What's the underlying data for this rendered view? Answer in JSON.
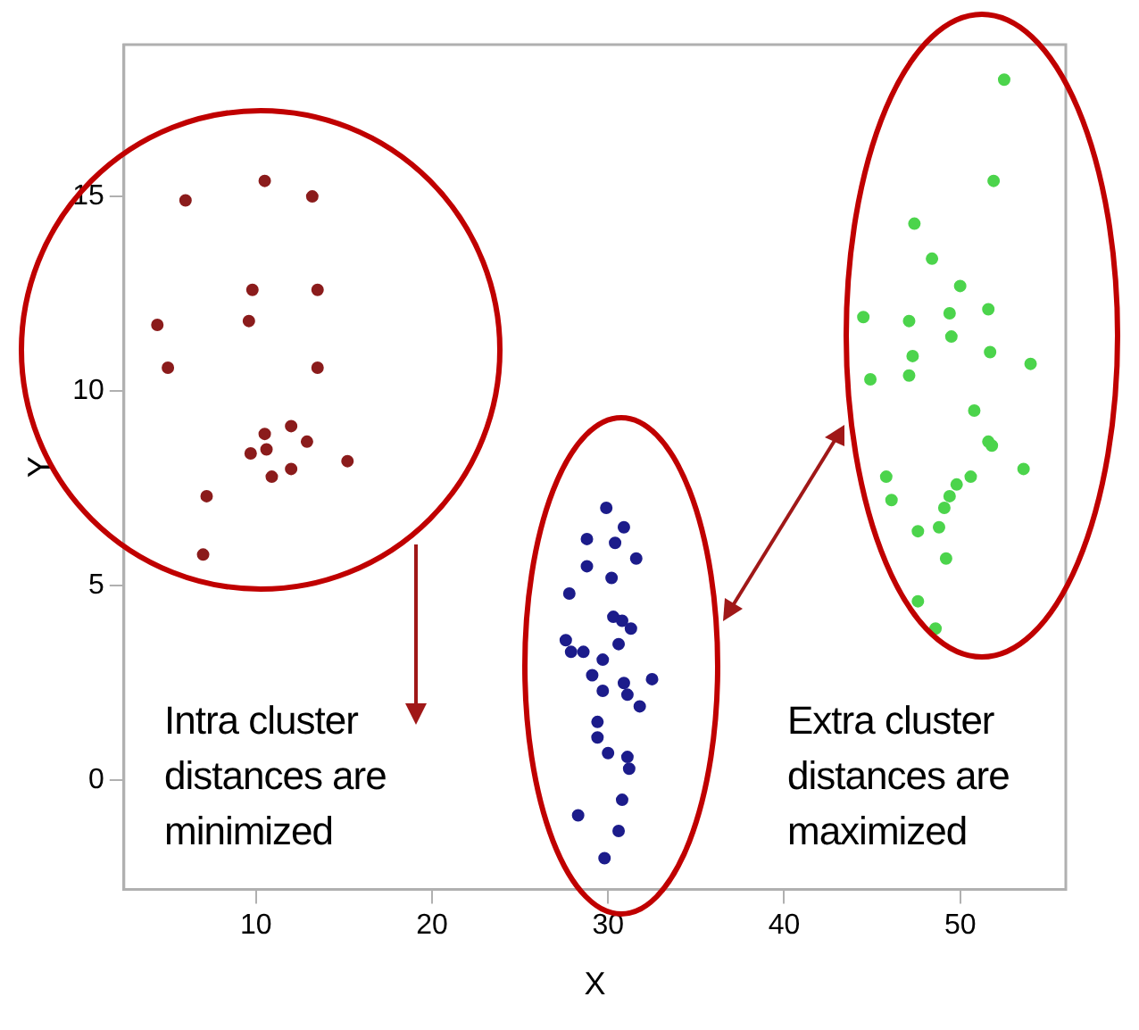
{
  "chart_data": {
    "type": "scatter",
    "xlabel": "X",
    "ylabel": "Y",
    "xlim": [
      2.5,
      56
    ],
    "ylim": [
      -2.8,
      18.9
    ],
    "xticks": [
      10,
      20,
      30,
      40,
      50
    ],
    "yticks": [
      0,
      5,
      10,
      15
    ],
    "grid": false,
    "legend": false,
    "marker": "circle",
    "annotations": [
      "Intra cluster distances are minimized",
      "Extra cluster distances are maximized"
    ],
    "series": [
      {
        "color": "#8b1c1c",
        "x": [
          10.5,
          6.0,
          13.2,
          9.8,
          13.5,
          4.4,
          9.6,
          5.0,
          13.5,
          10.5,
          12.0,
          12.9,
          9.7,
          10.6,
          10.9,
          12.0,
          15.2,
          7.2,
          7.0
        ],
        "values": [
          15.4,
          14.9,
          15.0,
          12.6,
          12.6,
          11.7,
          11.8,
          10.6,
          10.6,
          8.9,
          9.1,
          8.7,
          8.4,
          8.5,
          7.8,
          8.0,
          8.2,
          7.3,
          5.8
        ]
      },
      {
        "color": "#1c1c8b",
        "x": [
          29.9,
          28.8,
          30.4,
          30.9,
          28.8,
          31.6,
          30.2,
          27.8,
          30.3,
          30.8,
          31.3,
          27.6,
          30.6,
          27.9,
          28.6,
          29.7,
          29.1,
          30.9,
          32.5,
          29.7,
          31.1,
          31.8,
          29.4,
          29.4,
          30.0,
          31.1,
          31.2,
          30.8,
          28.3,
          30.6,
          29.8
        ],
        "values": [
          7.0,
          6.2,
          6.1,
          6.5,
          5.5,
          5.7,
          5.2,
          4.8,
          4.2,
          4.1,
          3.9,
          3.6,
          3.5,
          3.3,
          3.3,
          3.1,
          2.7,
          2.5,
          2.6,
          2.3,
          2.2,
          1.9,
          1.5,
          1.1,
          0.7,
          0.6,
          0.3,
          -0.5,
          -0.9,
          -1.3,
          -2.0
        ]
      },
      {
        "color": "#4cd44c",
        "x": [
          52.5,
          51.9,
          47.4,
          48.4,
          50.0,
          51.6,
          44.5,
          47.1,
          49.4,
          49.5,
          51.7,
          47.3,
          54.0,
          44.9,
          47.1,
          50.8,
          51.6,
          51.8,
          53.6,
          45.8,
          50.6,
          49.8,
          46.1,
          49.4,
          49.1,
          47.6,
          48.8,
          49.2,
          47.6,
          48.6
        ],
        "values": [
          18.0,
          15.4,
          14.3,
          13.4,
          12.7,
          12.1,
          11.9,
          11.8,
          12.0,
          11.4,
          11.0,
          10.9,
          10.7,
          10.3,
          10.4,
          9.5,
          8.7,
          8.6,
          8.0,
          7.8,
          7.8,
          7.6,
          7.2,
          7.3,
          7.0,
          6.4,
          6.5,
          5.7,
          4.6,
          3.9
        ]
      }
    ]
  }
}
